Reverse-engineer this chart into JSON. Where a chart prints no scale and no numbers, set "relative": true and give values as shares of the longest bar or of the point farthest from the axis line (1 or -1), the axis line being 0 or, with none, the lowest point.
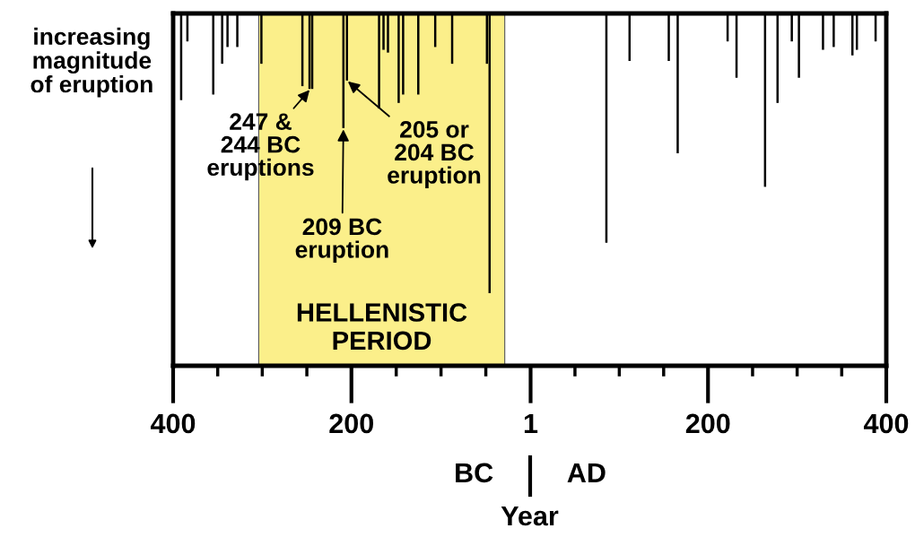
{
  "chart_data": {
    "type": "bar",
    "relative": true,
    "ylabel": "increasing\nmagnitude\nof eruption",
    "xlabel": "Year",
    "x": [
      -391,
      -384,
      -355,
      -345,
      -339,
      -328,
      -301,
      -255,
      -247,
      -244,
      -209,
      -205,
      -169,
      -164,
      -159,
      -147,
      -142,
      -125,
      -106,
      -87,
      -48,
      -45,
      86,
      112,
      156,
      166,
      222,
      232,
      264,
      278,
      294,
      302,
      329,
      341,
      362,
      367,
      388
    ],
    "values": [
      -0.31,
      -0.1,
      -0.29,
      -0.18,
      -0.12,
      -0.12,
      -0.18,
      -0.26,
      -0.27,
      -0.27,
      -0.41,
      -0.24,
      -0.34,
      -0.13,
      -0.14,
      -0.32,
      -0.29,
      -0.29,
      -0.12,
      -0.18,
      -0.18,
      -1,
      -0.82,
      -0.17,
      -0.17,
      -0.5,
      -0.1,
      -0.23,
      -0.62,
      -0.32,
      -0.1,
      -0.23,
      -0.13,
      -0.12,
      -0.15,
      -0.13,
      -0.1
    ],
    "color": "#000000",
    "xlim": [
      -400,
      400
    ],
    "xticks": [
      {
        "value": -400,
        "label": "400"
      },
      {
        "value": -200,
        "label": "200"
      },
      1,
      {
        "value": 200,
        "label": "200"
      },
      {
        "value": 400,
        "label": "400"
      }
    ],
    "tick_labels": "x",
    "bands": [
      {
        "axis": "x",
        "from": -304,
        "to": -28,
        "label": "HELLENISTIC\nPERIOD",
        "color": "#fbef8a"
      }
    ],
    "annotations": [
      {
        "text": "247 &\n244 BC\neruptions",
        "x": -246,
        "y": -0.27
      },
      {
        "text": "209 BC\neruption",
        "x": -209,
        "y": -0.41
      },
      {
        "text": "205 or\n204 BC\neruption",
        "x": -205,
        "y": -0.24
      },
      "BC",
      "AD"
    ]
  }
}
